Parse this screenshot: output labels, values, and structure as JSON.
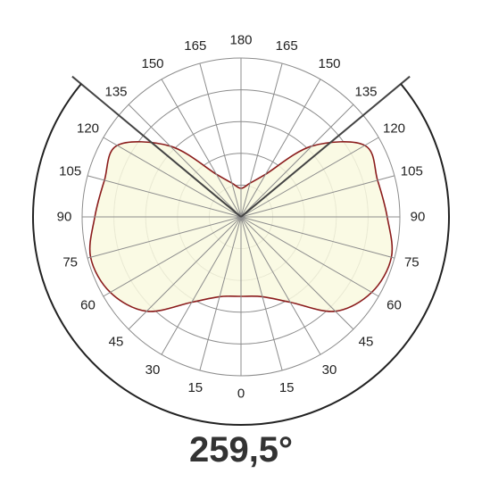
{
  "chart_data": {
    "type": "polar",
    "angle_tick_labels": [
      {
        "angle": 0,
        "label": "0"
      },
      {
        "angle": 15,
        "label": "15"
      },
      {
        "angle": 30,
        "label": "30"
      },
      {
        "angle": 45,
        "label": "45"
      },
      {
        "angle": 60,
        "label": "60"
      },
      {
        "angle": 75,
        "label": "75"
      },
      {
        "angle": 90,
        "label": "90"
      },
      {
        "angle": 105,
        "label": "105"
      },
      {
        "angle": 120,
        "label": "120"
      },
      {
        "angle": 135,
        "label": "135"
      },
      {
        "angle": 150,
        "label": "150"
      },
      {
        "angle": 165,
        "label": "165"
      },
      {
        "angle": 180,
        "label": "180"
      },
      {
        "angle": -165,
        "label": "165"
      },
      {
        "angle": -150,
        "label": "150"
      },
      {
        "angle": -135,
        "label": "135"
      },
      {
        "angle": -120,
        "label": "120"
      },
      {
        "angle": -105,
        "label": "105"
      },
      {
        "angle": -90,
        "label": "90"
      },
      {
        "angle": -75,
        "label": "75"
      },
      {
        "angle": -60,
        "label": "60"
      },
      {
        "angle": -45,
        "label": "45"
      },
      {
        "angle": -30,
        "label": "30"
      },
      {
        "angle": -15,
        "label": "15"
      }
    ],
    "radial_rings": [
      0.2,
      0.4,
      0.6,
      0.8,
      1.0
    ],
    "beam_angle_value": 259.5,
    "beam_angle_label": "259,5°",
    "series": [
      {
        "points": [
          {
            "angle": 0,
            "r": 0.5
          },
          {
            "angle": 15,
            "r": 0.52
          },
          {
            "angle": 30,
            "r": 0.62
          },
          {
            "angle": 45,
            "r": 0.84
          },
          {
            "angle": 60,
            "r": 0.95
          },
          {
            "angle": 75,
            "r": 0.98
          },
          {
            "angle": 90,
            "r": 0.92
          },
          {
            "angle": 105,
            "r": 0.89
          },
          {
            "angle": 120,
            "r": 0.9
          },
          {
            "angle": 135,
            "r": 0.63
          },
          {
            "angle": 150,
            "r": 0.31
          },
          {
            "angle": 165,
            "r": 0.22
          },
          {
            "angle": 180,
            "r": 0.18
          }
        ],
        "symmetric": true
      }
    ],
    "grid": true,
    "colors": {
      "fill": "#f9f9df",
      "curve": "#8b1c1c",
      "grid": "#8c8c8c",
      "beam_lines": "#444444",
      "outer_arc": "#222222"
    }
  }
}
